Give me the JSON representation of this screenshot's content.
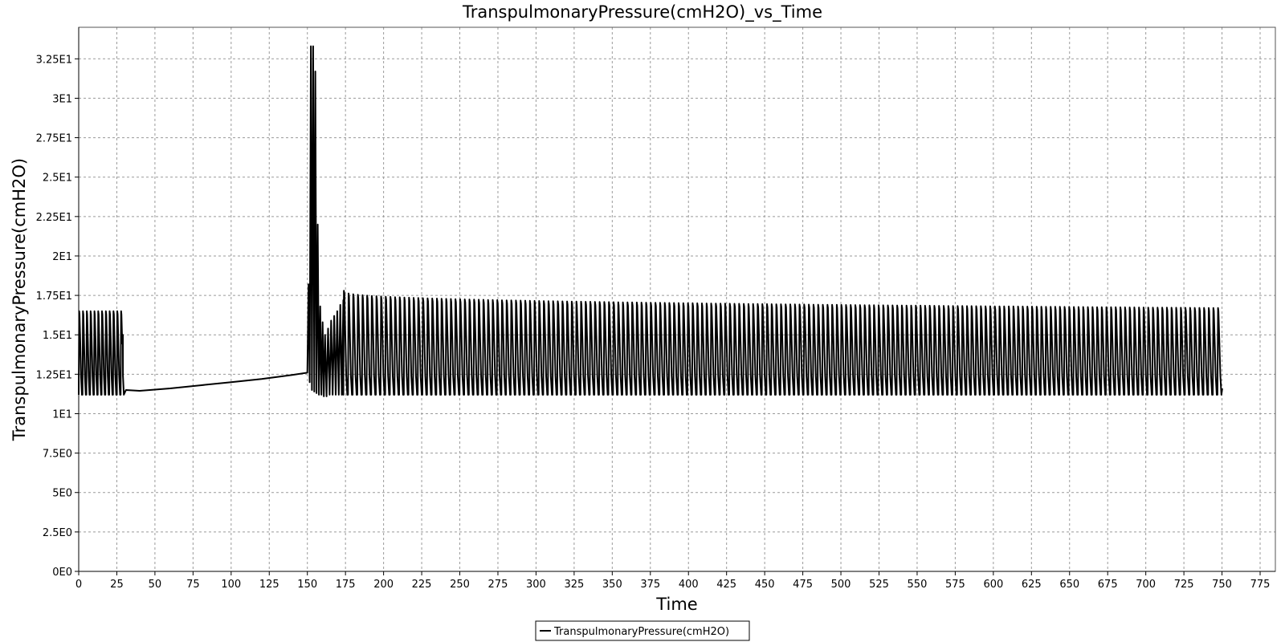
{
  "chart_data": {
    "type": "line",
    "title": "TranspulmonaryPressure(cmH2O)_vs_Time",
    "xlabel": "Time",
    "ylabel": "TranspulmonaryPressure(cmH2O)",
    "xlim": [
      0,
      785
    ],
    "ylim": [
      0,
      34.5
    ],
    "x_ticks": [
      0,
      25,
      50,
      75,
      100,
      125,
      150,
      175,
      200,
      225,
      250,
      275,
      300,
      325,
      350,
      375,
      400,
      425,
      450,
      475,
      500,
      525,
      550,
      575,
      600,
      625,
      650,
      675,
      700,
      725,
      750,
      775
    ],
    "x_tick_labels": [
      "0",
      "25",
      "50",
      "75",
      "100",
      "125",
      "150",
      "175",
      "200",
      "225",
      "250",
      "275",
      "300",
      "325",
      "350",
      "375",
      "400",
      "425",
      "450",
      "475",
      "500",
      "525",
      "550",
      "575",
      "600",
      "625",
      "650",
      "675",
      "700",
      "725",
      "750",
      "775"
    ],
    "y_ticks": [
      0,
      2.5,
      5,
      7.5,
      10,
      12.5,
      15,
      17.5,
      20,
      22.5,
      25,
      27.5,
      30,
      32.5
    ],
    "y_tick_labels": [
      "0E0",
      "2.5E0",
      "5E0",
      "7.5E0",
      "1E1",
      "1.25E1",
      "1.5E1",
      "1.75E1",
      "2E1",
      "2.25E1",
      "2.5E1",
      "2.75E1",
      "3E1",
      "3.25E1"
    ],
    "grid": true,
    "legend_position": "bottom-center",
    "series": [
      {
        "name": "TranspulmonaryPressure(cmH2O)",
        "color": "#000000",
        "segments": [
          {
            "kind": "oscillation",
            "x_start": 0,
            "x_end": 29,
            "period": 2.5,
            "min": 11.2,
            "max": 16.5
          },
          {
            "kind": "points",
            "x": [
              29,
              31,
              40,
              60,
              80,
              100,
              120,
              140,
              150
            ],
            "y": [
              15.0,
              11.5,
              11.45,
              11.6,
              11.8,
              12.0,
              12.2,
              12.45,
              12.6
            ]
          },
          {
            "kind": "points",
            "x": [
              150,
              150.8,
              151.5,
              152.3,
              153.0,
              153.8,
              154.5,
              155.2,
              156.0,
              156.8,
              157.6,
              158.4,
              159.2,
              160.0,
              160.8,
              161.6,
              162.6,
              163.6,
              164.6,
              165.6,
              166.6,
              167.6,
              168.6,
              169.6,
              170.6,
              171.6,
              172.6,
              173.6
            ],
            "y": [
              12.6,
              18.2,
              12.0,
              33.3,
              11.5,
              33.3,
              11.4,
              31.7,
              11.3,
              22.0,
              11.2,
              16.8,
              11.2,
              15.8,
              11.1,
              15.0,
              11.1,
              15.4,
              11.2,
              15.9,
              11.2,
              16.2,
              11.2,
              16.5,
              11.2,
              16.9,
              11.2,
              17.2
            ]
          },
          {
            "kind": "oscillation",
            "x_start": 173.6,
            "x_end": 750,
            "period": 3.05,
            "min": 11.2,
            "max_start": 17.8,
            "max_end": 16.7
          }
        ],
        "end_value": 11.6
      }
    ]
  }
}
